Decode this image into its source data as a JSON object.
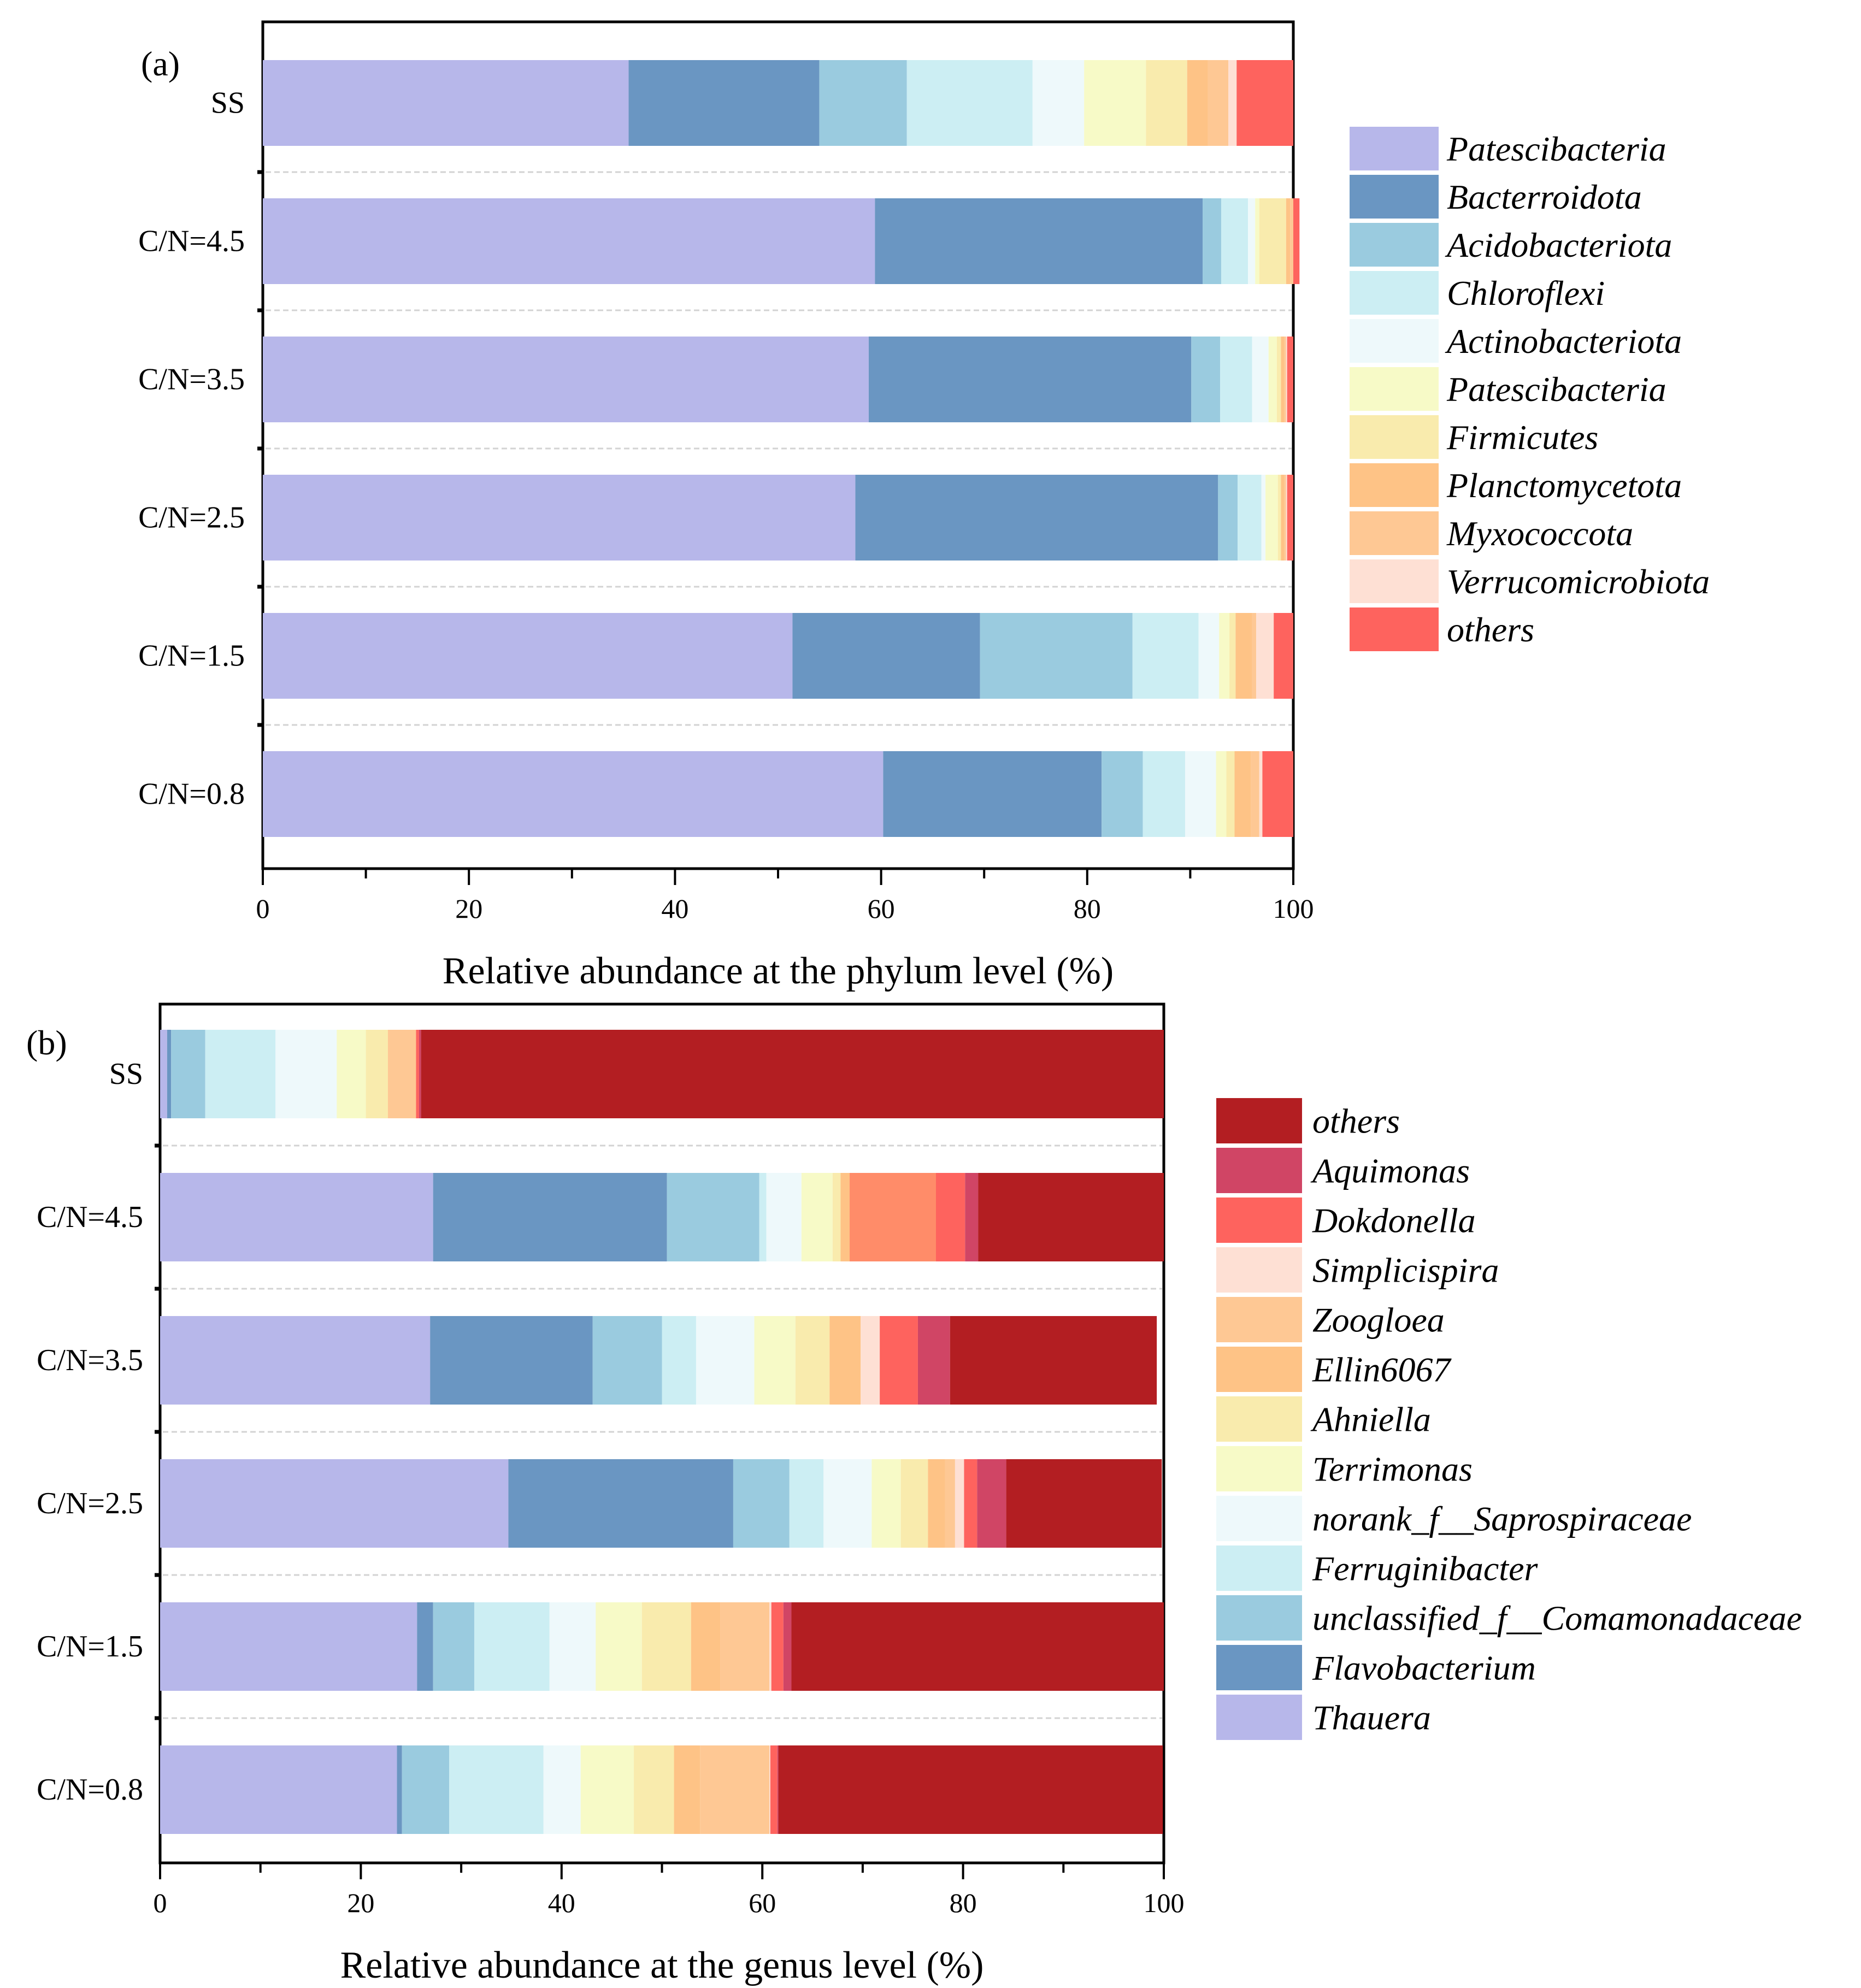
{
  "chart_data": [
    {
      "type": "bar",
      "orientation": "horizontal",
      "stacked": true,
      "panel_label": "(a)",
      "title": "",
      "xlabel": "Relative abundance at the phylum level (%)",
      "ylabel": "",
      "xlim": [
        0,
        100
      ],
      "xticks": [
        0,
        20,
        40,
        60,
        80,
        100
      ],
      "xtick_labels": [
        "0",
        "20",
        "40",
        "60",
        "80",
        "100"
      ],
      "grid": "dashed horizontal separators between bars",
      "legend_position": "right",
      "categories": [
        "SS",
        "C/N=4.5",
        "C/N=3.5",
        "C/N=2.5",
        "C/N=1.5",
        "C/N=0.8"
      ],
      "series": [
        {
          "name": "Patescibacteria",
          "color": "#B7B7EA",
          "values": [
            35.5,
            59.4,
            58.8,
            57.5,
            51.4,
            60.2
          ]
        },
        {
          "name": "Bacterroidota",
          "color": "#6A96C2",
          "values": [
            18.5,
            31.8,
            31.3,
            35.2,
            18.2,
            21.2
          ]
        },
        {
          "name": "Acidobacteriota",
          "color": "#9ACBDF",
          "values": [
            8.5,
            1.8,
            2.8,
            1.9,
            14.8,
            4.0
          ]
        },
        {
          "name": "Chloroflexi",
          "color": "#CCEEF3",
          "values": [
            12.2,
            2.6,
            3.1,
            2.3,
            6.4,
            4.1
          ]
        },
        {
          "name": "Actinobacteriota",
          "color": "#EEF9FB",
          "values": [
            5.0,
            0.7,
            1.6,
            0.4,
            2.0,
            3.0
          ]
        },
        {
          "name": "Patescibacteria",
          "color": "#F7FAC7",
          "values": [
            6.0,
            0.4,
            0.8,
            1.2,
            1.0,
            1.0
          ]
        },
        {
          "name": "Firmicutes",
          "color": "#F9EBAD",
          "values": [
            4.0,
            2.6,
            0.4,
            0.3,
            0.6,
            0.8
          ]
        },
        {
          "name": "Planctomycetota",
          "color": "#FEC386",
          "values": [
            2.0,
            0.4,
            0.3,
            0.3,
            1.6,
            1.6
          ]
        },
        {
          "name": "Myxococcota",
          "color": "#FEC894",
          "values": [
            2.0,
            0.3,
            0.2,
            0.2,
            0.4,
            0.8
          ]
        },
        {
          "name": "Verrucomicrobiota",
          "color": "#FEE0D4",
          "values": [
            0.8,
            0.0,
            0.1,
            0.1,
            1.7,
            0.3
          ]
        },
        {
          "name": "others",
          "color": "#FE635E",
          "values": [
            5.5,
            0.6,
            0.6,
            0.6,
            1.9,
            3.0
          ]
        }
      ]
    },
    {
      "type": "bar",
      "orientation": "horizontal",
      "stacked": true,
      "panel_label": "(b)",
      "title": "",
      "xlabel": "Relative abundance at the genus level (%)",
      "ylabel": "",
      "xlim": [
        0,
        100
      ],
      "xticks": [
        0,
        20,
        40,
        60,
        80,
        100
      ],
      "xtick_labels": [
        "0",
        "20",
        "40",
        "60",
        "80",
        "100"
      ],
      "grid": "dashed horizontal separators between bars",
      "legend_position": "right",
      "categories": [
        "SS",
        "C/N=4.5",
        "C/N=3.5",
        "C/N=2.5",
        "C/N=1.5",
        "C/N=0.8"
      ],
      "series": [
        {
          "name": "Thauera",
          "color": "#B7B7EA",
          "values": [
            0.7,
            27.2,
            26.9,
            34.7,
            25.6,
            23.6
          ]
        },
        {
          "name": "Flavobacterium",
          "color": "#6A96C2",
          "values": [
            0.4,
            23.3,
            16.2,
            22.4,
            1.6,
            0.5
          ]
        },
        {
          "name": "unclassified_f__Comamonadaceae",
          "color": "#9ACBDF",
          "values": [
            3.4,
            9.2,
            6.9,
            5.6,
            4.1,
            4.7
          ]
        },
        {
          "name": "Ferruginibacter",
          "color": "#CCEEF3",
          "values": [
            7.0,
            0.7,
            3.4,
            3.4,
            7.5,
            9.4
          ]
        },
        {
          "name": "norank_f__Saprospiraceae",
          "color": "#EEF9FB",
          "values": [
            6.1,
            3.5,
            5.8,
            4.8,
            4.6,
            3.7
          ]
        },
        {
          "name": "Terrimonas",
          "color": "#F7FAC7",
          "values": [
            2.9,
            3.1,
            4.1,
            2.9,
            4.6,
            5.3
          ]
        },
        {
          "name": "Ahniella",
          "color": "#F9EBAD",
          "values": [
            2.2,
            0.8,
            3.4,
            2.7,
            4.9,
            4.0
          ]
        },
        {
          "name": "Ellin6067",
          "color": "#FEC386",
          "values": [
            0.0,
            0.9,
            3.1,
            1.7,
            2.9,
            2.6
          ]
        },
        {
          "name": "Zoogloea",
          "color": "#FEC894",
          "values": [
            2.8,
            8.6,
            0.0,
            1.0,
            4.9,
            6.9
          ]
        },
        {
          "name": "Simplicispira",
          "color": "#FEE0D4",
          "values": [
            0.0,
            0.0,
            1.9,
            0.9,
            0.2,
            0.1
          ]
        },
        {
          "name": "Dokdonella",
          "color": "#FE635E",
          "values": [
            0.3,
            2.9,
            3.8,
            1.3,
            1.2,
            0.7
          ]
        },
        {
          "name": "Aquimonas",
          "color": "#D04565",
          "values": [
            0.2,
            1.3,
            3.2,
            2.9,
            0.8,
            0.1
          ]
        },
        {
          "name": "others",
          "color": "#B31E22",
          "values": [
            74.0,
            18.5,
            20.6,
            15.5,
            37.1,
            38.3
          ]
        }
      ],
      "legend_order": [
        "others",
        "Aquimonas",
        "Dokdonella",
        "Simplicispira",
        "Zoogloea",
        "Ellin6067",
        "Ahniella",
        "Terrimonas",
        "norank_f__Saprospiraceae",
        "Ferruginibacter",
        "unclassified_f__Comamonadaceae",
        "Flavobacterium",
        "Thauera"
      ],
      "notes": "In C/N=4.5 the Zoogloea-position segment is rendered in a salmon tone (#FF8C69)."
    }
  ]
}
